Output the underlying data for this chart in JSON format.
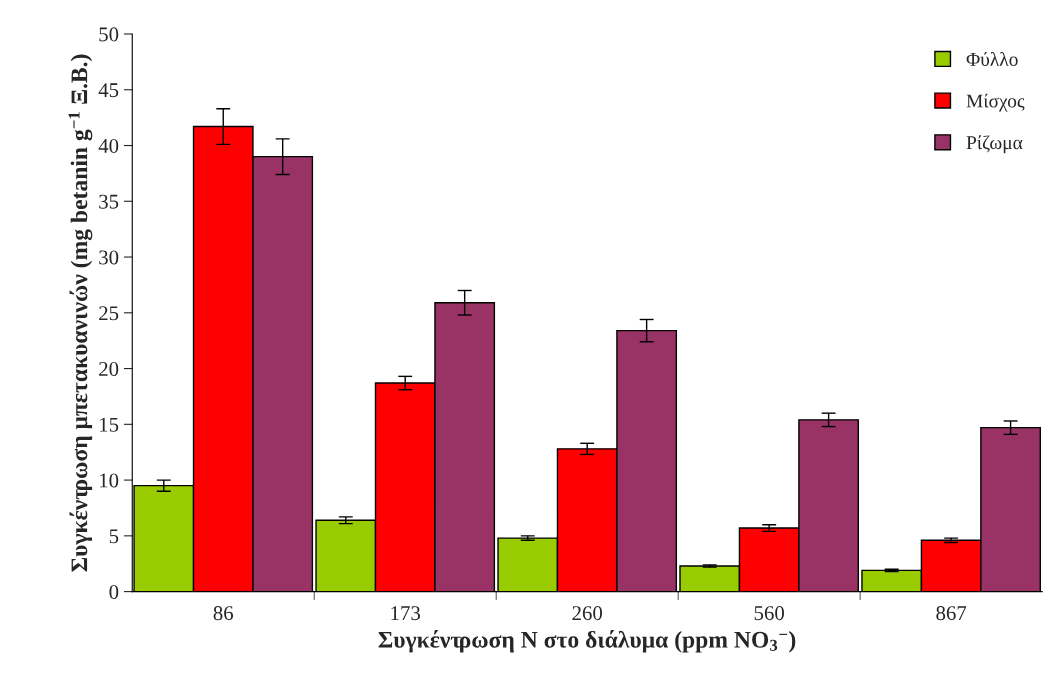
{
  "chart_data": {
    "type": "bar",
    "xlabel": "Συγκέντρωση Ν στο διάλυμα (ppm NO$_{3}$$^{−}$)",
    "ylabel": "Συγκέντρωση μπετακυανινών (mg betanin g$^{−1}$ Ξ.Β.)",
    "categories": [
      "86",
      "173",
      "260",
      "560",
      "867"
    ],
    "series": [
      {
        "name": "Φύλλο",
        "color": "#99cc00",
        "values": [
          9.5,
          6.4,
          4.8,
          2.3,
          1.9
        ],
        "errors": [
          0.5,
          0.3,
          0.2,
          0.1,
          0.1
        ]
      },
      {
        "name": "Μίσχος",
        "color": "#ff0000",
        "values": [
          41.7,
          18.7,
          12.8,
          5.7,
          4.6
        ],
        "errors": [
          1.6,
          0.6,
          0.5,
          0.3,
          0.2
        ]
      },
      {
        "name": "Ρίζωμα",
        "color": "#993366",
        "values": [
          39.0,
          25.9,
          23.4,
          15.4,
          14.7
        ],
        "errors": [
          1.6,
          1.1,
          1.0,
          0.6,
          0.6
        ]
      }
    ],
    "ylim": [
      0,
      50
    ],
    "yticks": [
      0,
      5,
      10,
      15,
      20,
      25,
      30,
      35,
      40,
      45,
      50
    ],
    "grid": false,
    "legend": "top right"
  }
}
